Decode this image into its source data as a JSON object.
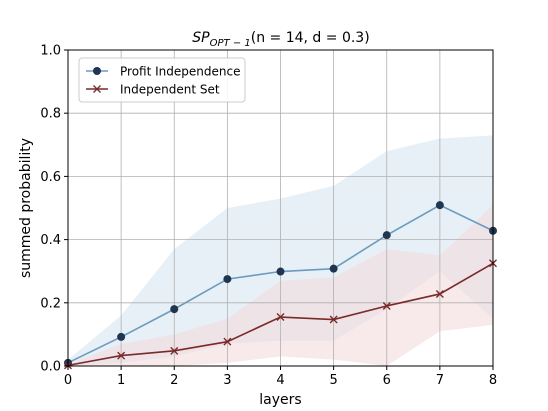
{
  "chart_data": {
    "type": "line",
    "title": {
      "prefix": "SP",
      "subscript": "OPT − 1",
      "args": "(n = 14, d = 0.3)"
    },
    "xlabel": "layers",
    "ylabel": "summed probability",
    "xlim": [
      0,
      8
    ],
    "ylim": [
      0.0,
      1.0
    ],
    "x_ticks": [
      "0",
      "1",
      "2",
      "3",
      "4",
      "5",
      "6",
      "7",
      "8"
    ],
    "y_ticks": [
      "0.0",
      "0.2",
      "0.4",
      "0.6",
      "0.8",
      "1.0"
    ],
    "grid": true,
    "legend_position": "top-left",
    "x": [
      0,
      1,
      2,
      3,
      4,
      5,
      6,
      7,
      8
    ],
    "series": [
      {
        "name": "Profit Independence",
        "marker": "circle",
        "color": "#6b9bbd",
        "marker_color": "#1f3550",
        "band_color": "#d6e4f1",
        "values": [
          0.01,
          0.092,
          0.18,
          0.275,
          0.299,
          0.308,
          0.414,
          0.509,
          0.428
        ],
        "band_lower": [
          0.0,
          0.01,
          0.03,
          0.07,
          0.08,
          0.08,
          0.18,
          0.3,
          0.15
        ],
        "band_upper": [
          0.02,
          0.16,
          0.37,
          0.5,
          0.53,
          0.57,
          0.68,
          0.72,
          0.73
        ]
      },
      {
        "name": "Independent Set",
        "marker": "x",
        "color": "#7b2a2a",
        "marker_color": "#7b2a2a",
        "band_color": "#f3d9da",
        "values": [
          0.002,
          0.033,
          0.048,
          0.077,
          0.155,
          0.147,
          0.19,
          0.228,
          0.325
        ],
        "band_lower": [
          0.0,
          0.0,
          0.0,
          0.01,
          0.03,
          0.02,
          0.0,
          0.11,
          0.13
        ],
        "band_upper": [
          0.005,
          0.07,
          0.1,
          0.15,
          0.27,
          0.28,
          0.37,
          0.35,
          0.51
        ]
      }
    ]
  }
}
